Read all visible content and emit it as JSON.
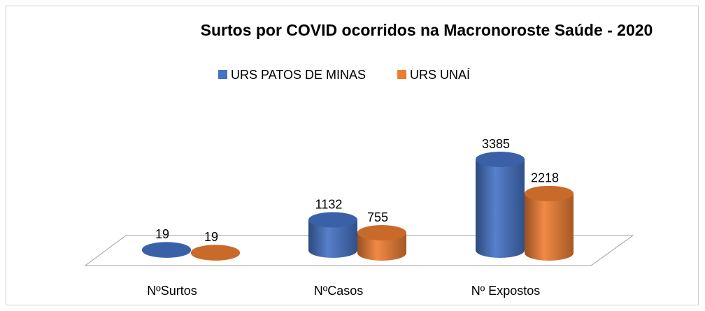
{
  "chart_data": {
    "type": "bar3d",
    "title": "Surtos por COVID ocorridos na Macronoroste Saúde - 2020",
    "categories": [
      "NºSurtos",
      "NºCasos",
      "Nº Expostos"
    ],
    "series": [
      {
        "name": "URS PATOS DE MINAS",
        "color": "#4472c4",
        "values": [
          19,
          1132,
          3385
        ]
      },
      {
        "name": "URS UNAÍ",
        "color": "#ed7d31",
        "values": [
          19,
          755,
          2218
        ]
      }
    ],
    "legend": "top"
  }
}
